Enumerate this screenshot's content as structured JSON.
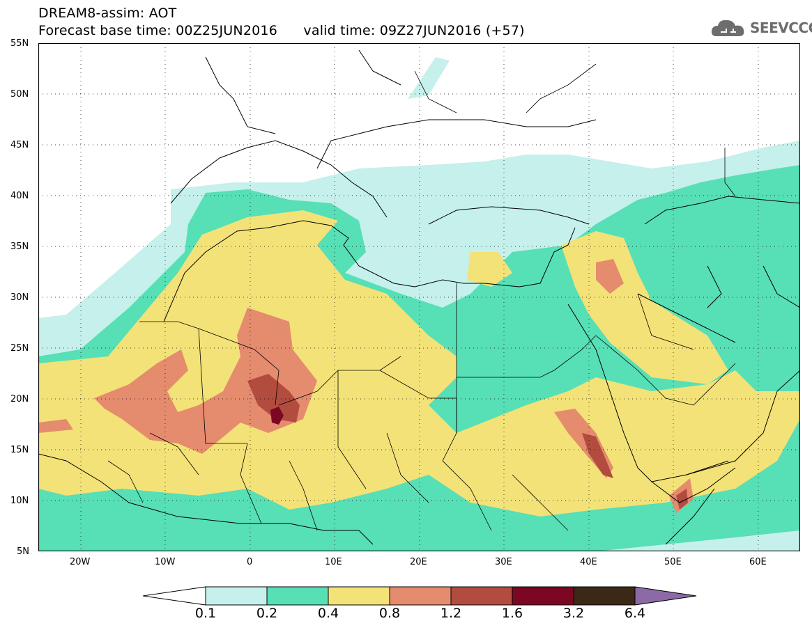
{
  "title": {
    "line1": "DREAM8-assim: AOT",
    "line2": "Forecast base time: 00Z25JUN2016      valid time: 09Z27JUN2016 (+57)"
  },
  "logo": {
    "text": "SEEVCCC",
    "icon": "cloud-icon"
  },
  "axes": {
    "lat_labels": [
      "55N",
      "50N",
      "45N",
      "40N",
      "35N",
      "30N",
      "25N",
      "20N",
      "15N",
      "10N",
      "5N"
    ],
    "lon_labels": [
      "20W",
      "10W",
      "0",
      "10E",
      "20E",
      "30E",
      "40E",
      "50E",
      "60E"
    ],
    "lat_range": [
      5,
      55
    ],
    "lon_range": [
      -25,
      65
    ]
  },
  "colorbar": {
    "labels": [
      "0.1",
      "0.2",
      "0.4",
      "0.8",
      "1.2",
      "1.6",
      "3.2",
      "6.4"
    ],
    "colors": [
      "#ffffff",
      "#c5f0eb",
      "#57dfb6",
      "#f3e277",
      "#e58b6e",
      "#b24c3f",
      "#7b0723",
      "#3c2817",
      "#8b6aa6"
    ]
  }
}
